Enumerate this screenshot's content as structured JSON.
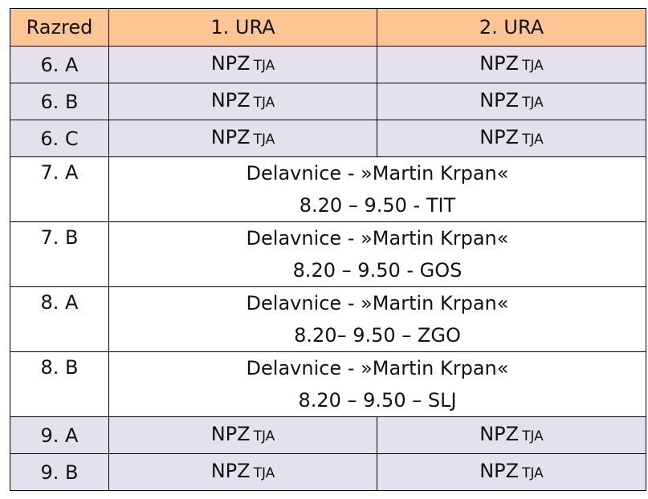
{
  "header": {
    "col_class": "Razred",
    "col_hour1": "1. URA",
    "col_hour2": "2. URA"
  },
  "rows": [
    {
      "class": "6. A",
      "h1_main": "NPZ",
      "h1_sub": "TJA",
      "h2_main": "NPZ",
      "h2_sub": "TJA"
    },
    {
      "class": "6. B",
      "h1_main": "NPZ",
      "h1_sub": "TJA",
      "h2_main": "NPZ",
      "h2_sub": "TJA"
    },
    {
      "class": "6. C",
      "h1_main": "NPZ",
      "h1_sub": "TJA",
      "h2_main": "NPZ",
      "h2_sub": "TJA"
    },
    {
      "class": "7. A",
      "work_prefix": "Delavnice - ",
      "work_title": "»Martin Krpan«",
      "work_time": "8.20 – 9.50 - TIT"
    },
    {
      "class": "7. B",
      "work_prefix": "Delavnice - ",
      "work_title": "»Martin Krpan«",
      "work_time": "8.20 – 9.50 - GOS"
    },
    {
      "class": "8. A",
      "work_prefix": "Delavnice - ",
      "work_title": "»Martin Krpan«",
      "work_time": "8.20– 9.50 – ZGO"
    },
    {
      "class": "8. B",
      "work_prefix": "Delavnice - ",
      "work_title": "»Martin Krpan«",
      "work_time": "8.20 – 9.50 – SLJ"
    },
    {
      "class": "9. A",
      "h1_main": "NPZ",
      "h1_sub": "TJA",
      "h2_main": "NPZ",
      "h2_sub": "TJA"
    },
    {
      "class": "9. B",
      "h1_main": "NPZ",
      "h1_sub": "TJA",
      "h2_main": "NPZ",
      "h2_sub": "TJA"
    }
  ],
  "colors": {
    "header_bg": "#fdc593",
    "npz_row_bg": "#e4e0ec",
    "workshop_row_bg": "#ffffff",
    "border": "#000000"
  }
}
